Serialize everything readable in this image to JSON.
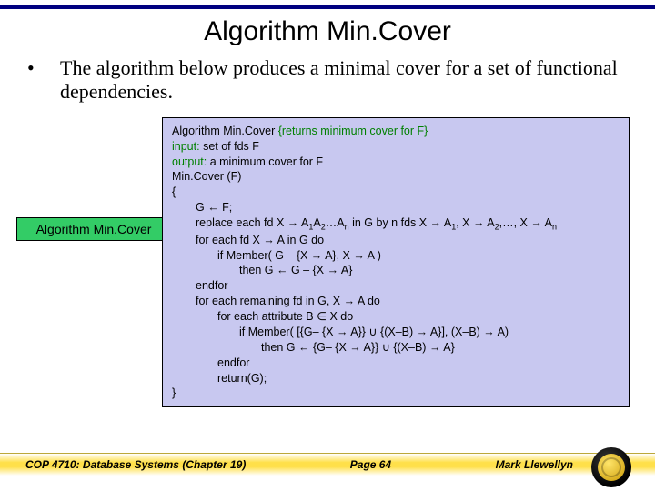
{
  "colors": {
    "rule": "#000080",
    "code_bg": "#c8c8f0",
    "side_bg": "#33cc66",
    "highlight": "#008000",
    "footer_grad_mid": "#ffe04a",
    "text": "#000000"
  },
  "fonts": {
    "title_size_pt": 30,
    "body_size_pt": 22,
    "code_size_pt": 12.5,
    "footer_size_pt": 12
  },
  "title": "Algorithm Min.Cover",
  "bullet_char": "•",
  "lead": "The algorithm below produces a minimal cover for a set of functional dependencies.",
  "side_label": "Algorithm Min.Cover",
  "algo": {
    "line1_a": "Algorithm Min.Cover  ",
    "line1_b": "{returns minimum cover for F}",
    "line2_a": "input:",
    "line2_b": "  set of fds F",
    "line3_a": "output:",
    "line3_b": "  a minimum cover for F",
    "line4": "Min.Cover (F)",
    "line5": "{",
    "line6": "G ← F;",
    "line7a": "replace each fd X → A",
    "line7b": "A",
    "line7c": "…A",
    "line7d": " in G by n fds X → A",
    "line7e": ", X → A",
    "line7f": ",…, X → A",
    "line8": "for each fd X → A in G do",
    "line9": "if Member( G – {X → A}, X → A )",
    "line10": "then G ← G – {X → A}",
    "line11": "endfor",
    "line12": "for each remaining fd in G, X → A do",
    "line13": "for each attribute B ∈ X do",
    "line14": "if Member( [{G– {X → A}} ∪ {(X–B) → A}], (X–B) → A)",
    "line15": "then G ← {G– {X → A}} ∪ {(X–B) → A}",
    "line16": "endfor",
    "line17": "return(G);",
    "line18": "}",
    "sub1": "1",
    "sub2": "2",
    "subn": "n"
  },
  "footer": {
    "left": "COP 4710: Database Systems  (Chapter 19)",
    "center": "Page 64",
    "right": "Mark Llewellyn"
  }
}
